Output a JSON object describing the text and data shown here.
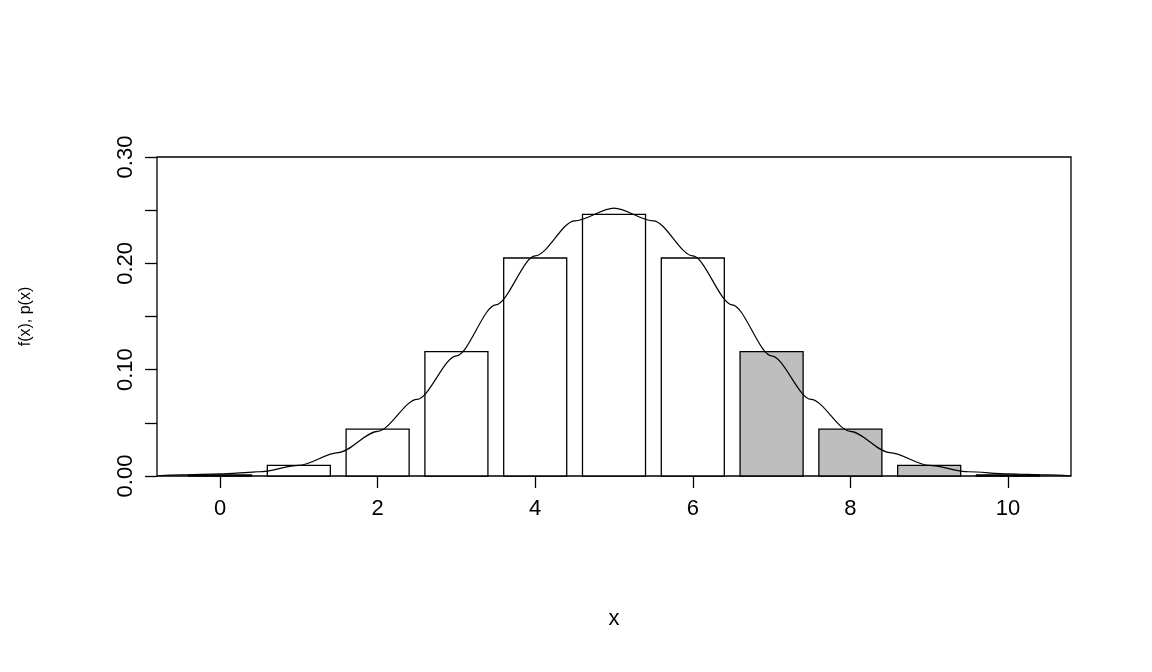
{
  "chart_data": {
    "type": "bar",
    "xlabel": "x",
    "ylabel": "f(x), p(x)",
    "xlim": [
      -0.8,
      10.8
    ],
    "ylim": [
      0,
      0.3
    ],
    "xticks": [
      0,
      2,
      4,
      6,
      8,
      10
    ],
    "yticks": [
      {
        "value": 0,
        "label": "0.00"
      },
      {
        "value": 0.05,
        "label": null
      },
      {
        "value": 0.1,
        "label": "0.10"
      },
      {
        "value": 0.15,
        "label": null
      },
      {
        "value": 0.2,
        "label": "0.20"
      },
      {
        "value": 0.25,
        "label": null
      },
      {
        "value": 0.3,
        "label": "0.30"
      }
    ],
    "marker": "none",
    "series": [
      {
        "x": [
          0,
          1,
          2,
          3,
          4,
          5,
          6,
          7,
          8,
          9,
          10
        ],
        "values": [
          0.001,
          0.01,
          0.044,
          0.117,
          0.205,
          0.246,
          0.205,
          0.117,
          0.044,
          0.01,
          0.001
        ],
        "colors": [
          "#ffffff",
          "#ffffff",
          "#ffffff",
          "#ffffff",
          "#ffffff",
          "#ffffff",
          "#ffffff",
          "#bebebe",
          "#bebebe",
          "#bebebe",
          "#bebebe"
        ]
      },
      {
        "type": "line",
        "color": "#000000",
        "x": [
          -0.8,
          -0.5,
          0,
          0.5,
          1,
          1.5,
          2,
          2.5,
          3,
          3.5,
          4,
          4.5,
          5,
          5.5,
          6,
          6.5,
          7,
          7.5,
          8,
          8.5,
          9,
          9.5,
          10,
          10.5,
          10.8
        ],
        "values": [
          0,
          0.001,
          0.002,
          0.004,
          0.01,
          0.022,
          0.042,
          0.072,
          0.113,
          0.161,
          0.207,
          0.24,
          0.252,
          0.24,
          0.207,
          0.161,
          0.113,
          0.072,
          0.042,
          0.022,
          0.01,
          0.004,
          0.002,
          0.001,
          0
        ]
      }
    ]
  }
}
